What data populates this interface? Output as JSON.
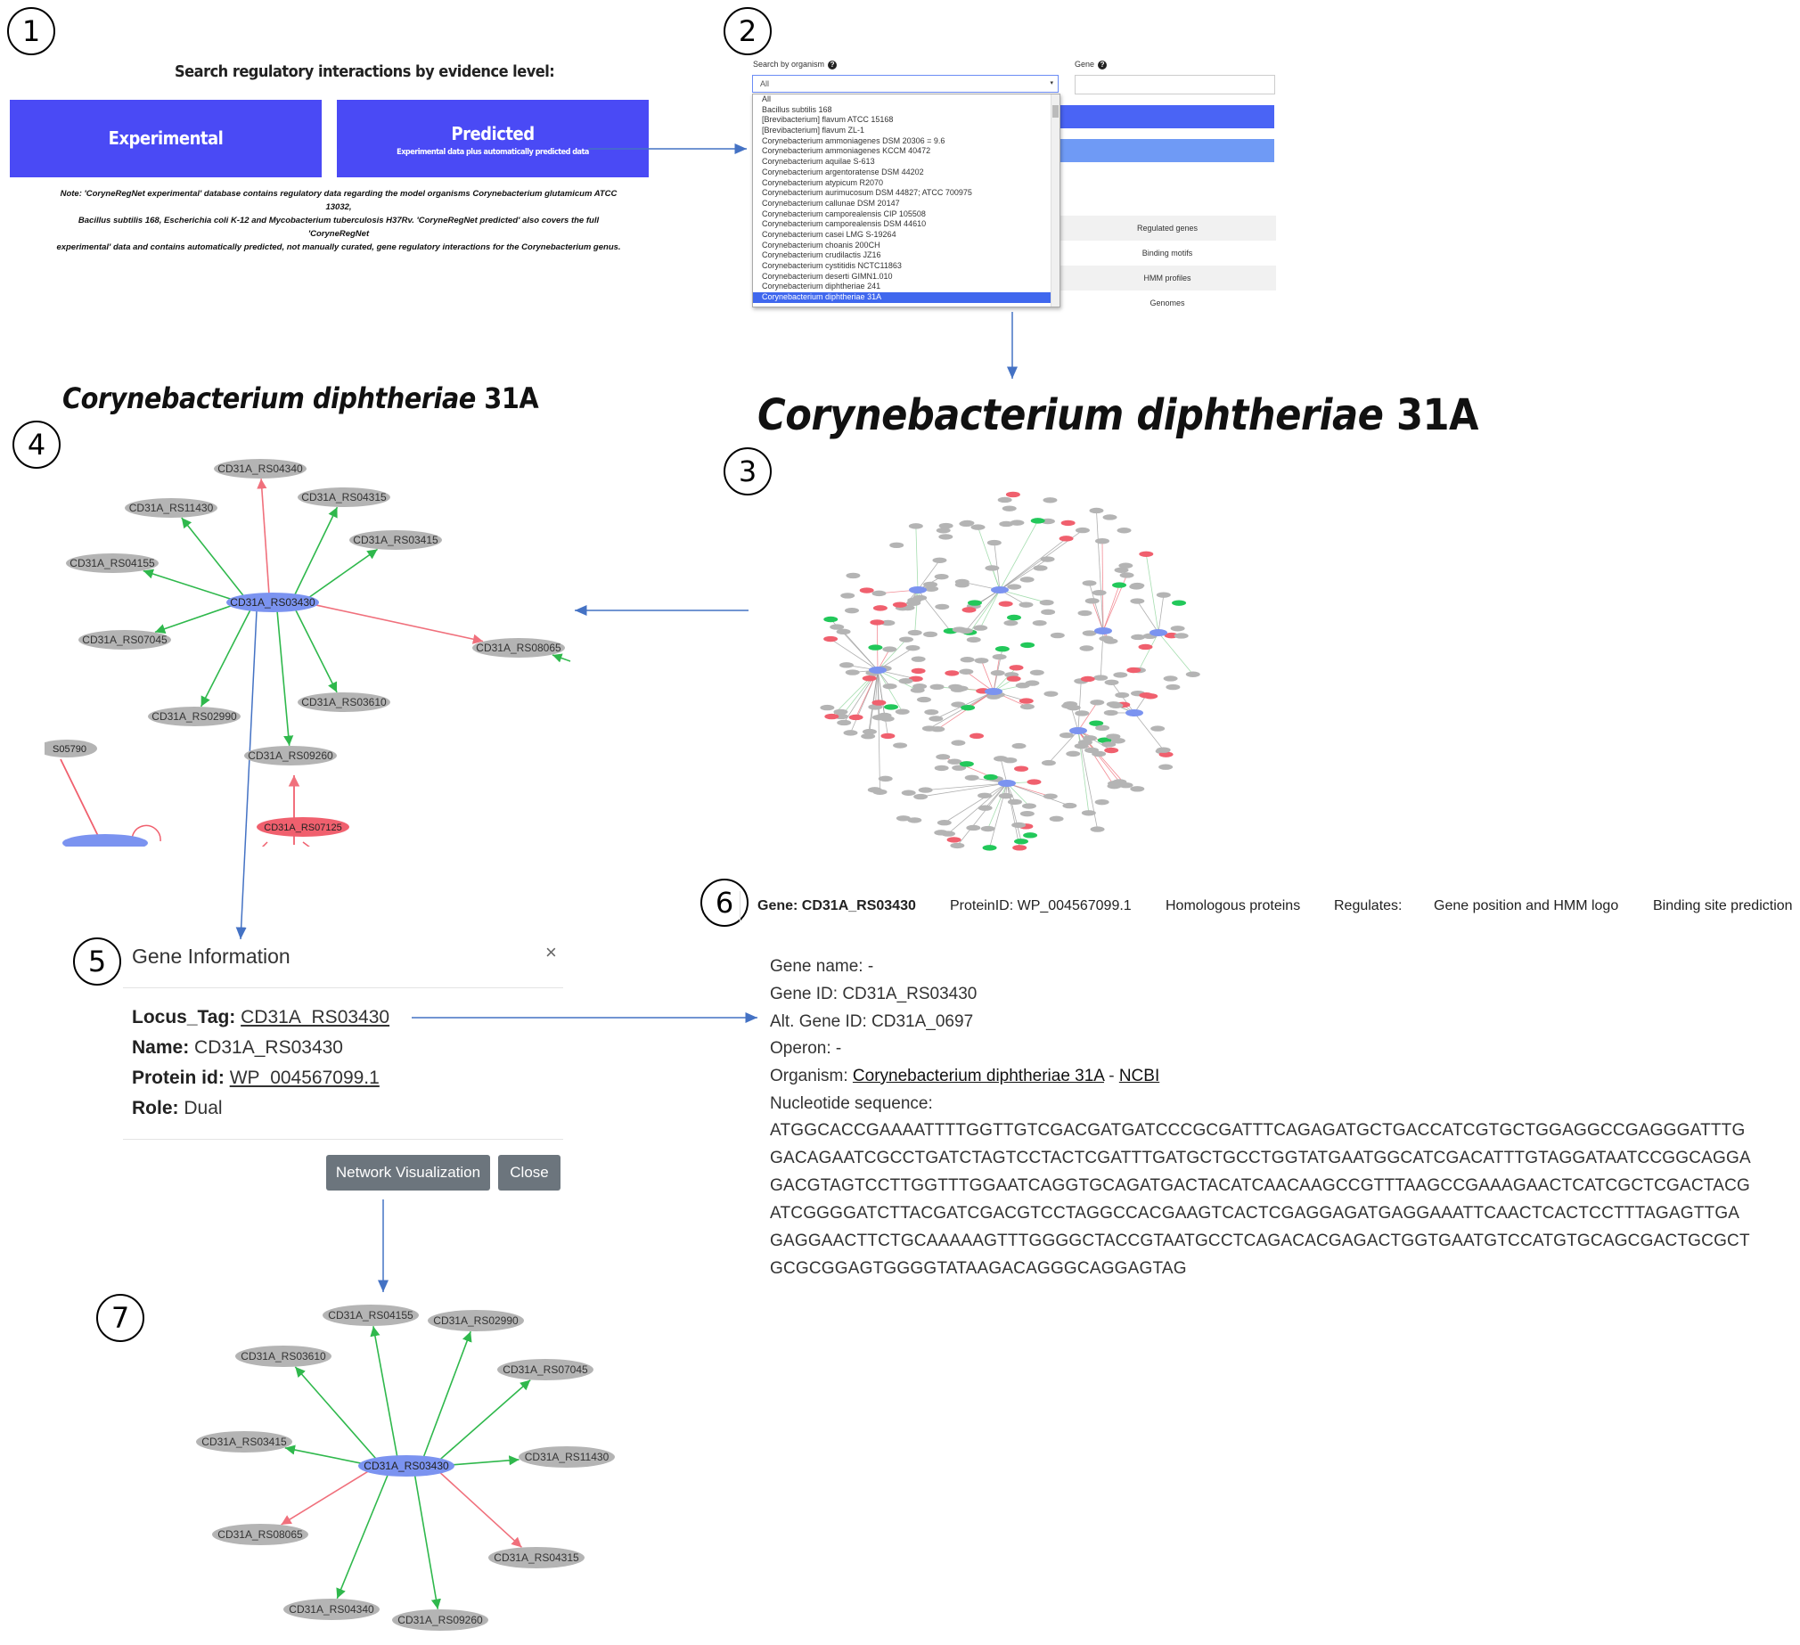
{
  "steps": [
    "1",
    "2",
    "3",
    "4",
    "5",
    "6",
    "7"
  ],
  "panel1": {
    "heading": "Search regulatory interactions by evidence level:",
    "experimental_label": "Experimental",
    "predicted_label": "Predicted",
    "predicted_sub": "Experimental data plus automatically predicted data",
    "note_line1": "Note: 'CoryneRegNet experimental' database contains regulatory data regarding the model organisms Corynebacterium glutamicum ATCC 13032,",
    "note_line2": "Bacillus subtilis 168, Escherichia coli K-12 and Mycobacterium tuberculosis H37Rv. 'CoryneRegNet predicted' also covers the full 'CoryneRegNet",
    "note_line3": "experimental' data and contains automatically predicted, not manually curated, gene regulatory interactions for the Corynebacterium genus.",
    "colors": {
      "button": "#4a4af5"
    }
  },
  "panel2": {
    "org_label": "Search by organism",
    "gene_label": "Gene",
    "select_value": "All",
    "options": [
      "All",
      "Bacillus subtilis 168",
      "[Brevibacterium] flavum ATCC 15168",
      "[Brevibacterium] flavum ZL-1",
      "Corynebacterium ammoniagenes DSM 20306 = 9.6",
      "Corynebacterium ammoniagenes KCCM 40472",
      "Corynebacterium aquilae S-613",
      "Corynebacterium argentoratense DSM 44202",
      "Corynebacterium atypicum R2070",
      "Corynebacterium aurimucosum DSM 44827; ATCC 700975",
      "Corynebacterium callunae DSM 20147",
      "Corynebacterium camporealensis CIP 105508",
      "Corynebacterium camporealensis DSM 44610",
      "Corynebacterium casei LMG S-19264",
      "Corynebacterium choanis 200CH",
      "Corynebacterium crudilactis JZ16",
      "Corynebacterium cystitidis NCTC11863",
      "Corynebacterium deserti GIMN1.010",
      "Corynebacterium diphtheriae 241",
      "Corynebacterium diphtheriae 31A"
    ],
    "selected_option": "Corynebacterium diphtheriae 31A",
    "rows": [
      "Regulated genes",
      "Binding motifs",
      "HMM profiles",
      "Genomes"
    ]
  },
  "title_big": {
    "italic": "Corynebacterium diphtheriae",
    "plain": "31A"
  },
  "title_small": {
    "italic": "Corynebacterium diphtheriae",
    "plain": "31A"
  },
  "panel4": {
    "center": "CD31A_RS03430",
    "nodes": [
      "CD31A_RS04340",
      "CD31A_RS11430",
      "CD31A_RS04315",
      "CD31A_RS03415",
      "CD31A_RS04155",
      "CD31A_RS07045",
      "CD31A_RS08065",
      "CD31A_RS03610",
      "CD31A_RS02990",
      "CD31A_RS09260",
      "CD31A_RS07125",
      "S05790"
    ]
  },
  "panel5": {
    "title": "Gene Information",
    "close_glyph": "×",
    "locus_label": "Locus_Tag:",
    "locus_value": "CD31A_RS03430",
    "name_label": "Name:",
    "name_value": "CD31A_RS03430",
    "protein_label": "Protein id:",
    "protein_value": "WP_004567099.1",
    "role_label": "Role:",
    "role_value": "Dual",
    "btn_network": "Network Visualization",
    "btn_close": "Close"
  },
  "panel6": {
    "tabs": [
      "Gene: CD31A_RS03430",
      "ProteinID: WP_004567099.1",
      "Homologous proteins",
      "Regulates:",
      "Gene position and HMM logo",
      "Binding site prediction"
    ],
    "gene_name": "Gene name: -",
    "gene_id": "Gene ID: CD31A_RS03430",
    "alt_id": "Alt. Gene ID: CD31A_0697",
    "operon": "Operon: -",
    "organism_label": "Organism:",
    "organism_link": "Corynebacterium diphtheriae 31A",
    "organism_sep": "-",
    "ncbi_link": "NCBI",
    "seq_label": "Nucleotide sequence:",
    "sequence": [
      "ATGGCACCGAAAATTTTGGTTGTCGACGATGATCCCGCGATTTCAGAGATGCTGACCATCGTGCTGGAGGCCGAGGGATTTG",
      "GACAGAATCGCCTGATCTAGTCCTACTCGATTTGATGCTGCCTGGTATGAATGGCATCGACATTTGTAGGATAATCCGGCAGGA",
      "GACGTAGTCCTTGGTTTGGAATCAGGTGCAGATGACTACATCAACAAGCCGTTTAAGCCGAAAGAACTCATCGCTCGACTACG",
      "ATCGGGGATCTTACGATCGACGTCCTAGGCCACGAAGTCACTCGAGGAGATGAGGAAATTCAACTCACTCCTTTAGAGTTGA",
      "GAGGAACTTCTGCAAAAAGTTTGGGGCTACCGTAATGCCTCAGACACGAGACTGGTGAATGTCCATGTGCAGCGACTGCGCT",
      "GCGCGGAGTGGGGTATAAGACAGGGCAGGAGTAG"
    ]
  },
  "panel7": {
    "center": "CD31A_RS03430",
    "nodes": [
      "CD31A_RS04155",
      "CD31A_RS02990",
      "CD31A_RS03610",
      "CD31A_RS07045",
      "CD31A_RS03415",
      "CD31A_RS11430",
      "CD31A_RS08065",
      "CD31A_RS04315",
      "CD31A_RS04340",
      "CD31A_RS09260"
    ]
  },
  "colors": {
    "node_gray": "#b4b4b4",
    "node_blue": "#7b93f0",
    "node_red": "#f0606e",
    "edge_green": "#2fb84c",
    "edge_red": "#f0707c",
    "arrow_blue": "#4472c4"
  }
}
